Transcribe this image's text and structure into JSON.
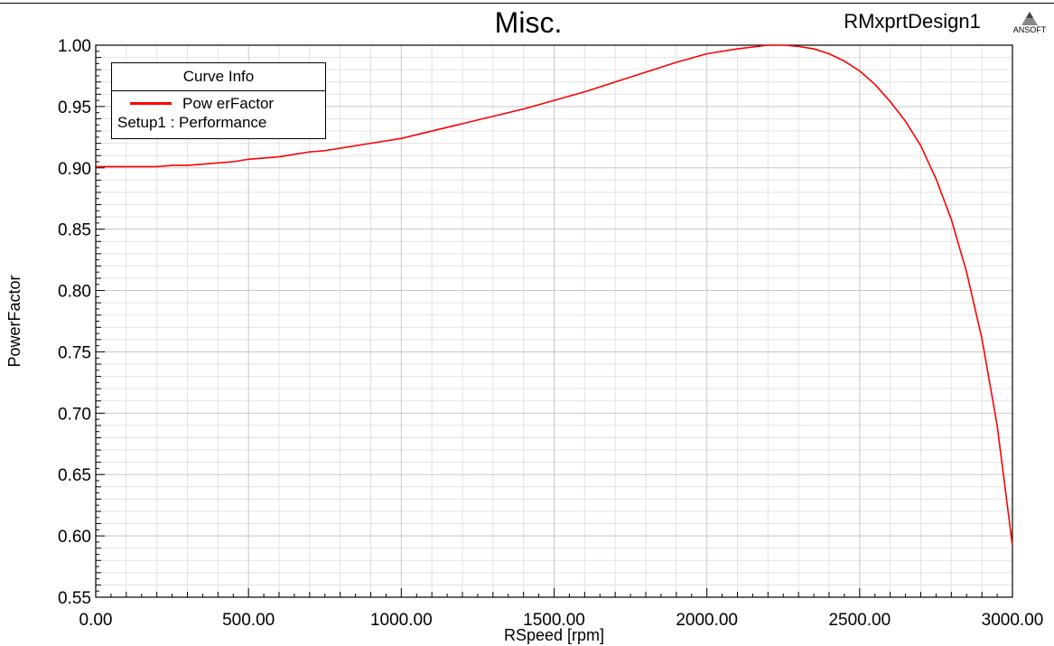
{
  "header": {
    "title": "Misc.",
    "design_name": "RMxprtDesign1",
    "logo_text": "ANSOFT"
  },
  "legend": {
    "header": "Curve Info",
    "series_label": "Pow erFactor",
    "setup_label": "Setup1 : Performance"
  },
  "colors": {
    "series": "#ff0000",
    "grid": "#c8c8c8",
    "axis": "#000000"
  },
  "chart_data": {
    "type": "line",
    "title": "Misc.",
    "xlabel": "RSpeed [rpm]",
    "ylabel": "PowerFactor",
    "xlim": [
      0,
      3000
    ],
    "ylim": [
      0.55,
      1.0
    ],
    "x_ticks": [
      "0.00",
      "500.00",
      "1000.00",
      "1500.00",
      "2000.00",
      "2500.00",
      "3000.00"
    ],
    "y_ticks": [
      "0.55",
      "0.60",
      "0.65",
      "0.70",
      "0.75",
      "0.80",
      "0.85",
      "0.90",
      "0.95",
      "1.00"
    ],
    "grid": true,
    "legend_position": "top-left",
    "series": [
      {
        "name": "PowerFactor",
        "color": "#ff0000",
        "x": [
          0,
          100,
          200,
          250,
          300,
          350,
          400,
          450,
          500,
          550,
          600,
          650,
          700,
          750,
          800,
          900,
          1000,
          1100,
          1200,
          1300,
          1400,
          1500,
          1600,
          1700,
          1800,
          1900,
          2000,
          2100,
          2200,
          2250,
          2300,
          2350,
          2400,
          2450,
          2500,
          2550,
          2600,
          2650,
          2700,
          2750,
          2800,
          2850,
          2900,
          2950,
          3000
        ],
        "y": [
          0.901,
          0.901,
          0.901,
          0.902,
          0.902,
          0.903,
          0.904,
          0.905,
          0.907,
          0.908,
          0.909,
          0.911,
          0.913,
          0.914,
          0.916,
          0.92,
          0.924,
          0.93,
          0.936,
          0.942,
          0.948,
          0.955,
          0.962,
          0.97,
          0.978,
          0.986,
          0.993,
          0.997,
          1.0,
          1.0,
          0.999,
          0.997,
          0.993,
          0.987,
          0.979,
          0.968,
          0.954,
          0.938,
          0.918,
          0.891,
          0.858,
          0.815,
          0.761,
          0.69,
          0.592
        ]
      }
    ]
  }
}
